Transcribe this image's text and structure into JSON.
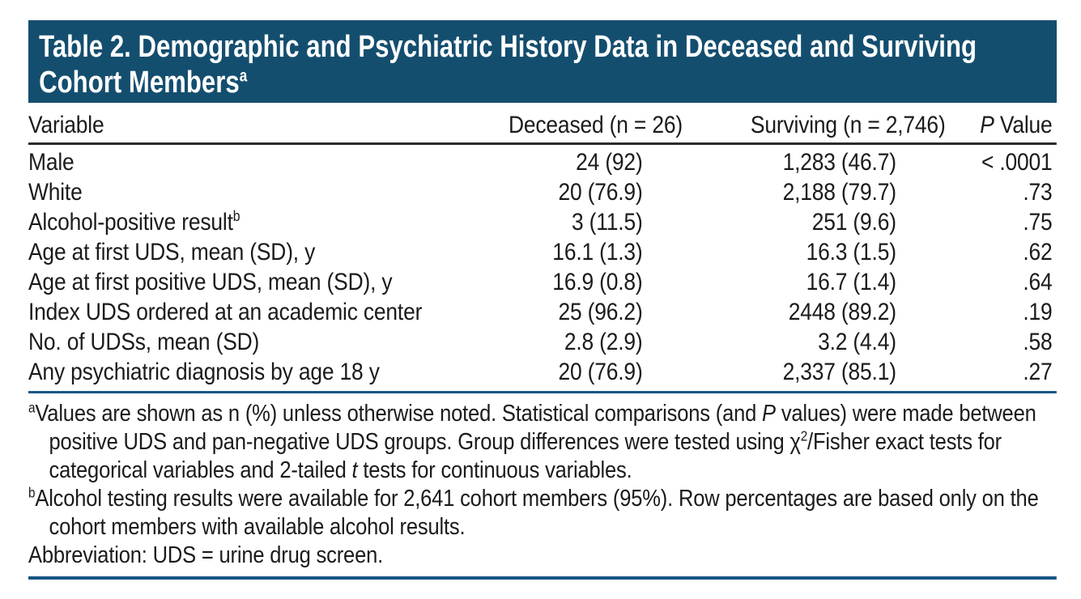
{
  "colors": {
    "page_bg": "#ffffff",
    "banner_bg": "#144e6f",
    "title_text": "#ffffff",
    "text": "#1b1b1b",
    "rule_dark": "#2b2b2b",
    "rule_blue": "#175584"
  },
  "table": {
    "title_runs": [
      {
        "t": "Table 2. Demographic and Psychiatric History Data in Deceased and Surviving"
      },
      {
        "br": true
      },
      {
        "t": "Cohort Members"
      },
      {
        "t": "a",
        "sup": true
      }
    ],
    "columns": [
      {
        "runs": [
          {
            "t": "Variable"
          }
        ]
      },
      {
        "runs": [
          {
            "t": "Deceased (n = 26)"
          }
        ]
      },
      {
        "runs": [
          {
            "t": "Surviving (n = 2,746)"
          }
        ]
      },
      {
        "runs": [
          {
            "t": "P",
            "it": true
          },
          {
            "t": " Value"
          }
        ]
      }
    ],
    "rows": [
      {
        "variable": [
          {
            "t": "Male"
          }
        ],
        "deceased": "24 (92)",
        "surviving": "1,283 (46.7)",
        "p": "< .0001"
      },
      {
        "variable": [
          {
            "t": "White"
          }
        ],
        "deceased": "20 (76.9)",
        "surviving": "2,188 (79.7)",
        "p": ".73"
      },
      {
        "variable": [
          {
            "t": "Alcohol-positive result"
          },
          {
            "t": "b",
            "sup": true
          }
        ],
        "deceased": "3 (11.5)",
        "surviving": "251 (9.6)",
        "p": ".75"
      },
      {
        "variable": [
          {
            "t": "Age at first UDS, mean (SD), y"
          }
        ],
        "deceased": "16.1 (1.3)",
        "surviving": "16.3 (1.5)",
        "p": ".62"
      },
      {
        "variable": [
          {
            "t": "Age at first positive UDS, mean (SD), y"
          }
        ],
        "deceased": "16.9 (0.8)",
        "surviving": "16.7 (1.4)",
        "p": ".64"
      },
      {
        "variable": [
          {
            "t": "Index UDS ordered at an academic center"
          }
        ],
        "deceased": "25 (96.2)",
        "surviving": "2448 (89.2)",
        "p": ".19"
      },
      {
        "variable": [
          {
            "t": "No. of UDSs, mean (SD)"
          }
        ],
        "deceased": "2.8 (2.9)",
        "surviving": "3.2 (4.4)",
        "p": ".58"
      },
      {
        "variable": [
          {
            "t": "Any psychiatric diagnosis by age 18 y"
          }
        ],
        "deceased": "20 (76.9)",
        "surviving": "2,337 (85.1)",
        "p": ".27"
      }
    ],
    "footnotes": [
      {
        "id": "a",
        "runs": [
          {
            "t": "a",
            "sup": true
          },
          {
            "t": "Values are shown as n (%) unless otherwise noted. Statistical comparisons (and "
          },
          {
            "t": "P",
            "it": true
          },
          {
            "t": " values) were made between positive UDS and pan-negative UDS groups. Group differences were tested using χ"
          },
          {
            "t": "2",
            "sup": true
          },
          {
            "t": "/Fisher exact tests for categorical variables and 2-tailed "
          },
          {
            "t": "t",
            "it": true
          },
          {
            "t": " tests for continuous variables."
          }
        ]
      },
      {
        "id": "b",
        "runs": [
          {
            "t": "b",
            "sup": true
          },
          {
            "t": "Alcohol testing results were available for 2,641 cohort members (95%). Row percentages are based only on the cohort members with available alcohol results."
          }
        ]
      },
      {
        "id": "abbreviation",
        "runs": [
          {
            "t": "Abbreviation: UDS = urine drug screen."
          }
        ]
      }
    ]
  }
}
